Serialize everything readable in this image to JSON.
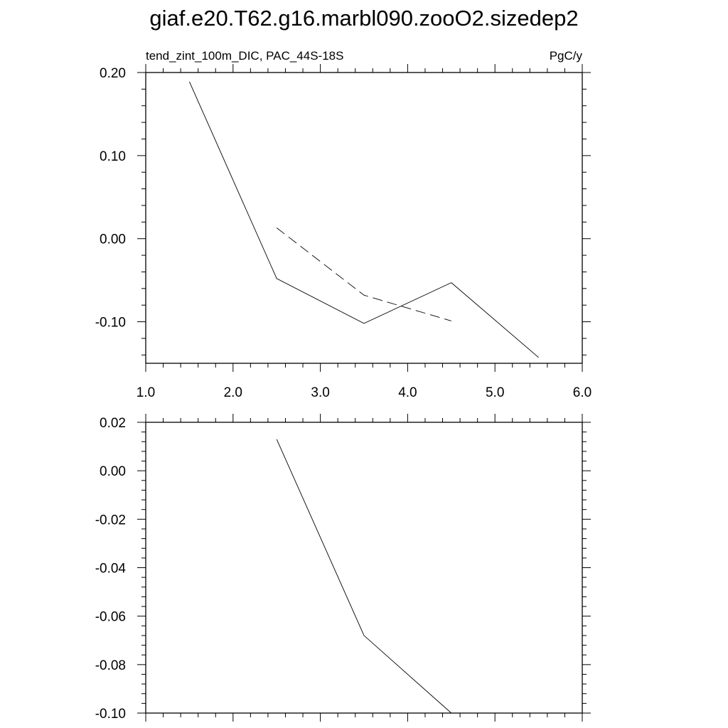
{
  "title": "giaf.e20.T62.g16.marbl090.zooO2.sizedep2",
  "chart_data": [
    {
      "type": "line",
      "left_label": "tend_zint_100m_DIC, PAC_44S-18S",
      "right_label": "PgC/y",
      "xlim": [
        1.0,
        6.0
      ],
      "ylim": [
        -0.15,
        0.2
      ],
      "x_ticks": [
        "1.0",
        "2.0",
        "3.0",
        "4.0",
        "5.0",
        "6.0"
      ],
      "y_ticks": [
        "0.20",
        "0.10",
        "0.00",
        "-0.10"
      ],
      "series": [
        {
          "style": "solid",
          "x": [
            1.5,
            2.5,
            3.5,
            4.5,
            5.5
          ],
          "y": [
            0.189,
            -0.048,
            -0.102,
            -0.053,
            -0.143
          ]
        },
        {
          "style": "dashed",
          "x": [
            2.5,
            3.5,
            4.5
          ],
          "y": [
            0.013,
            -0.068,
            -0.099
          ]
        }
      ]
    },
    {
      "type": "line",
      "xlim": [
        1.0,
        6.0
      ],
      "ylim": [
        -0.1,
        0.02
      ],
      "y_ticks": [
        "0.02",
        "0.00",
        "-0.02",
        "-0.04",
        "-0.06",
        "-0.08",
        "-0.10"
      ],
      "series": [
        {
          "style": "solid",
          "x": [
            2.5,
            3.5,
            4.5
          ],
          "y": [
            0.013,
            -0.068,
            -0.1
          ]
        }
      ]
    }
  ]
}
